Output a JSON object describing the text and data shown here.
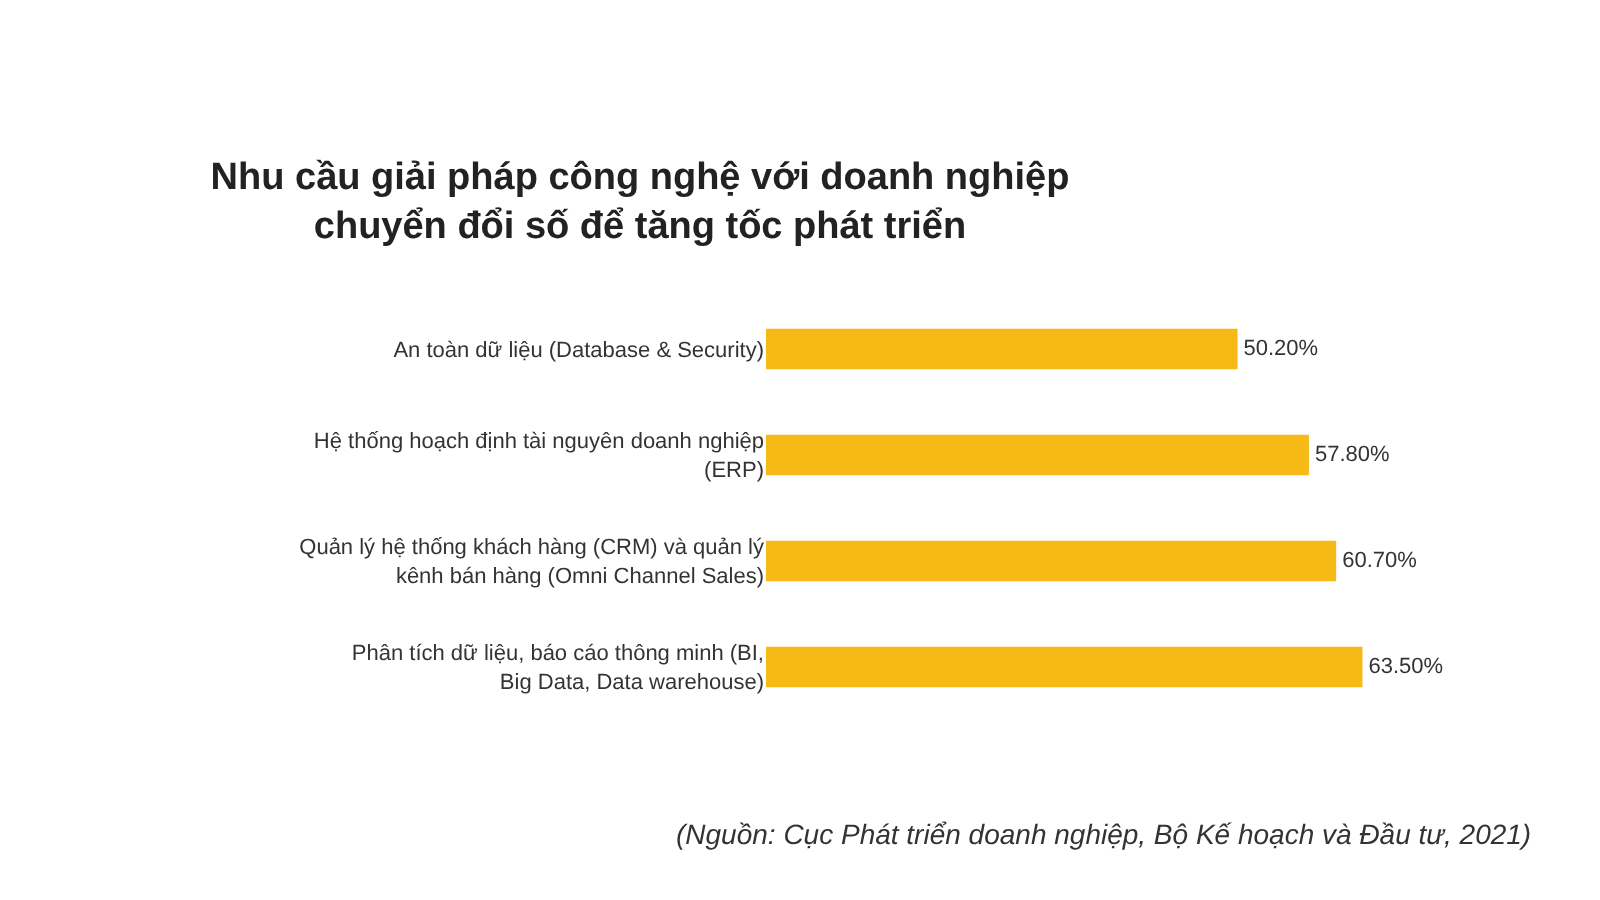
{
  "chart_data": {
    "type": "bar",
    "orientation": "horizontal",
    "title": "Nhu cầu giải pháp công nghệ với doanh nghiệp chuyển đổi số để tăng tốc phát triển",
    "categories": [
      "An toàn dữ liệu (Database & Security)",
      "Hệ thống hoạch định tài nguyên doanh nghiệp (ERP)",
      "Quản lý hệ thống khách hàng (CRM) và quản lý kênh bán hàng (Omni Channel Sales)",
      "Phân tích dữ liệu, báo cáo thông minh (BI, Big Data, Data warehouse)"
    ],
    "values": [
      50.2,
      57.8,
      60.7,
      63.5
    ],
    "value_labels": [
      "50.20%",
      "57.80%",
      "60.70%",
      "63.50%"
    ],
    "color": "#f7b916",
    "annotations": [
      "(Nguồn: Cục Phát triển doanh nghiệp, Bộ Kế hoạch và Đầu tư, 2021)"
    ]
  }
}
